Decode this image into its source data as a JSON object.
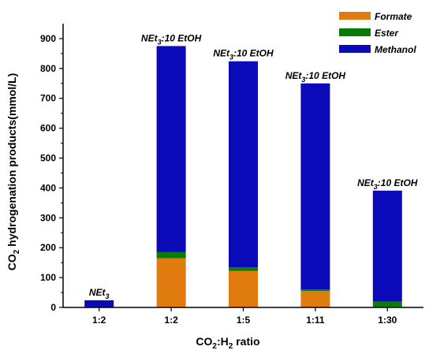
{
  "chart_data": {
    "type": "bar",
    "stacked": true,
    "categories": [
      "1:2",
      "1:2",
      "1:5",
      "1:11",
      "1:30"
    ],
    "bar_annotations": [
      {
        "main": "NEt",
        "sub": "3",
        "tail": ""
      },
      {
        "main": "NEt",
        "sub": "3",
        "tail": ":10 EtOH"
      },
      {
        "main": "NEt",
        "sub": "3",
        "tail": ":10 EtOH"
      },
      {
        "main": "NEt",
        "sub": "3",
        "tail": ":10 EtOH"
      },
      {
        "main": "NEt",
        "sub": "3",
        "tail": ":10 EtOH"
      }
    ],
    "series": [
      {
        "name": "Formate",
        "color": "#e07b10",
        "values": [
          0,
          165,
          122,
          55,
          2
        ]
      },
      {
        "name": "Ester",
        "color": "#0a7a0a",
        "values": [
          0,
          20,
          12,
          5,
          18
        ]
      },
      {
        "name": "Methanol",
        "color": "#0a0ab8",
        "values": [
          24,
          690,
          690,
          690,
          371
        ]
      }
    ],
    "ylim": [
      0,
      950
    ],
    "yticks": [
      0,
      100,
      200,
      300,
      400,
      500,
      600,
      700,
      800,
      900
    ],
    "ylabel": {
      "a": "CO",
      "a_sub": "2",
      "b": " hydrogenation products(mmol/L)"
    },
    "xlabel": {
      "a": "CO",
      "a_sub": "2",
      "b": ":H",
      "b_sub": "2",
      "c": " ratio"
    },
    "legend_position": "top-right",
    "grid": false
  }
}
